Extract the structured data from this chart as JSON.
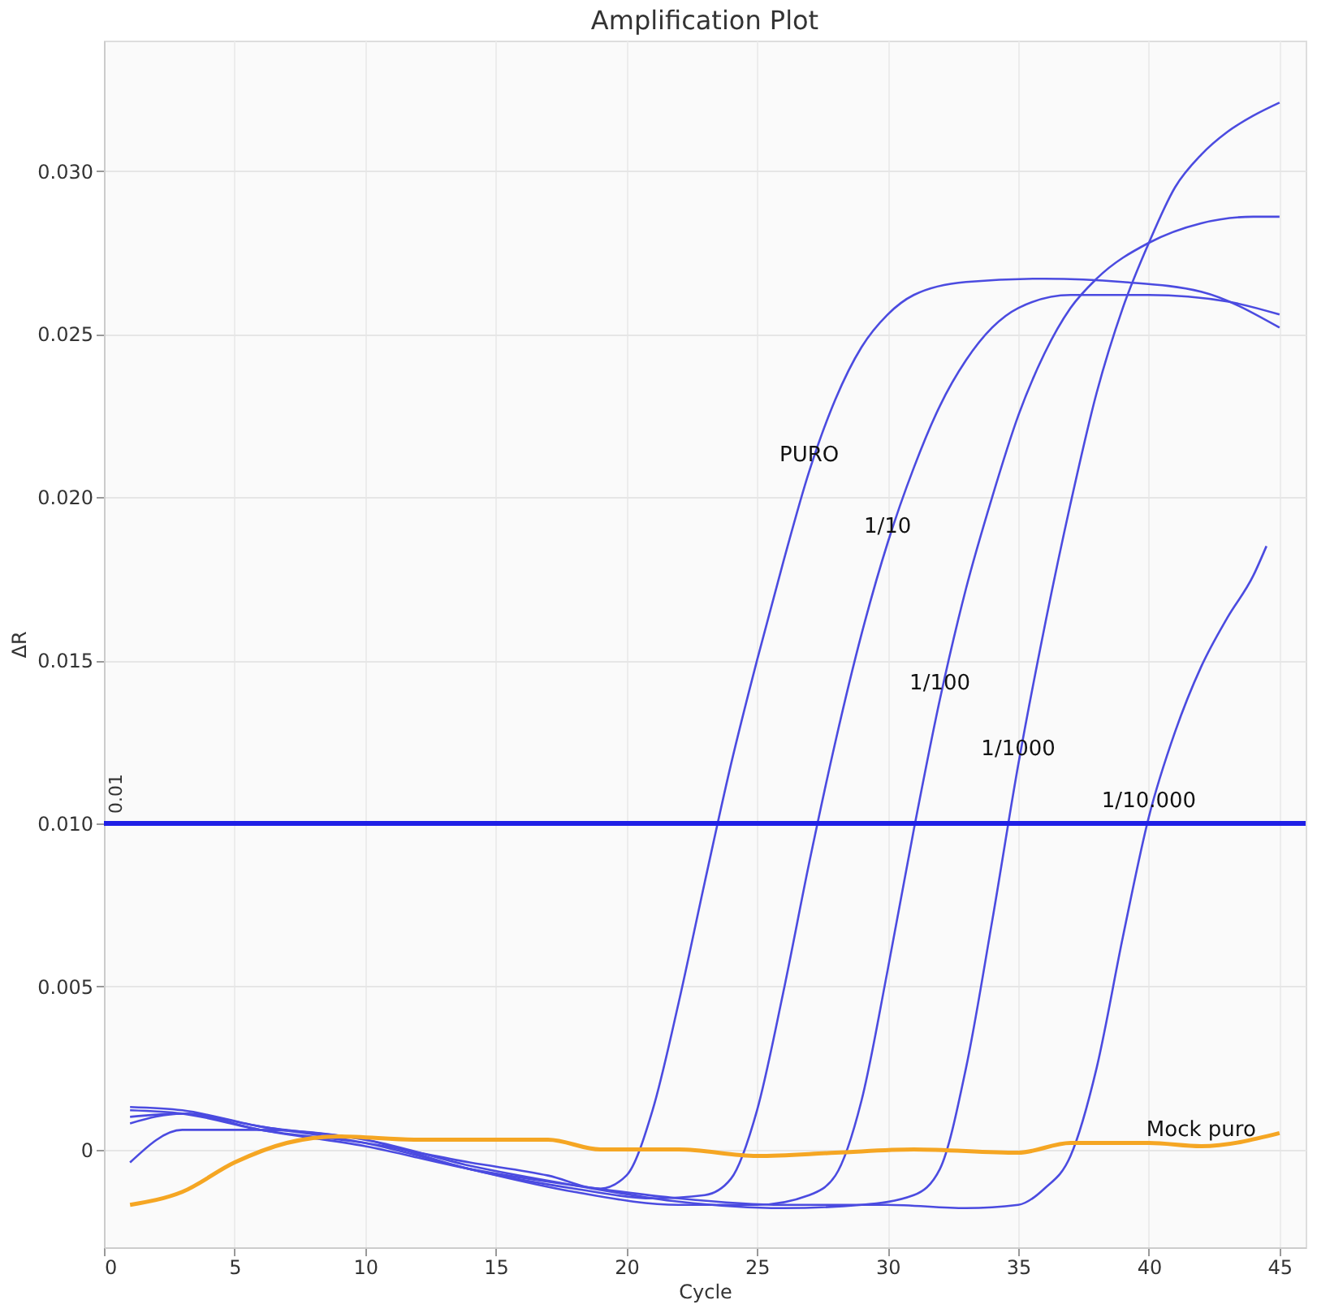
{
  "chart_data": {
    "type": "line",
    "title": "Amplification Plot",
    "xlabel": "Cycle",
    "ylabel": "ΔR",
    "xlim": [
      0,
      46
    ],
    "xticks": [
      0,
      5,
      10,
      15,
      20,
      25,
      30,
      35,
      40,
      45
    ],
    "ylim": [
      -0.003,
      0.034
    ],
    "yticks": [
      {
        "value": 0,
        "label": "0"
      },
      {
        "value": 0.005,
        "label": "0.005"
      },
      {
        "value": 0.01,
        "label": "0.010"
      },
      {
        "value": 0.015,
        "label": "0.015"
      },
      {
        "value": 0.02,
        "label": "0.020"
      },
      {
        "value": 0.025,
        "label": "0.025"
      },
      {
        "value": 0.03,
        "label": "0.030"
      }
    ],
    "grid": true,
    "marker": "none",
    "line_style": "solid",
    "series": [
      {
        "color": "#4b4be0",
        "x": [
          1,
          3,
          6,
          10,
          14,
          17,
          19,
          20,
          21,
          22,
          23,
          24,
          25,
          26,
          27,
          28,
          29,
          30,
          31,
          33,
          36,
          39,
          42,
          45
        ],
        "values": [
          0.0012,
          0.0011,
          0.0006,
          0.0002,
          -0.0004,
          -0.0008,
          -0.0012,
          -0.0008,
          0.0012,
          0.0045,
          0.0082,
          0.0118,
          0.015,
          0.018,
          0.0208,
          0.023,
          0.0246,
          0.0256,
          0.0262,
          0.0266,
          0.0267,
          0.0266,
          0.0263,
          0.0252
        ]
      },
      {
        "color": "#4b4be0",
        "x": [
          1,
          3,
          6,
          10,
          14,
          18,
          21,
          23,
          24,
          25,
          26,
          27,
          28,
          29,
          30,
          31,
          32,
          33,
          34,
          35,
          37,
          40,
          43,
          45
        ],
        "values": [
          0.0013,
          0.0012,
          0.0007,
          0.0003,
          -0.0006,
          -0.0012,
          -0.0015,
          -0.0014,
          -0.0009,
          0.0012,
          0.0048,
          0.0088,
          0.0125,
          0.0158,
          0.0186,
          0.0209,
          0.0228,
          0.0242,
          0.0252,
          0.0258,
          0.0262,
          0.0262,
          0.026,
          0.0256
        ]
      },
      {
        "color": "#4b4be0",
        "x": [
          1,
          3,
          6,
          10,
          14,
          18,
          22,
          25,
          27,
          28,
          29,
          30,
          31,
          32,
          33,
          34,
          35,
          36,
          37,
          38,
          40,
          42,
          44,
          45
        ],
        "values": [
          0.0008,
          0.0011,
          0.0007,
          0.0002,
          -0.0006,
          -0.0013,
          -0.0017,
          -0.0017,
          -0.0014,
          -0.0008,
          0.0015,
          0.0055,
          0.0098,
          0.0138,
          0.0172,
          0.02,
          0.0225,
          0.0244,
          0.0258,
          0.0267,
          0.0278,
          0.0284,
          0.0286,
          0.0286
        ]
      },
      {
        "color": "#4b4be0",
        "x": [
          1,
          3,
          6,
          10,
          14,
          18,
          22,
          26,
          29,
          31,
          32,
          33,
          34,
          35,
          36,
          37,
          38,
          39,
          40,
          41,
          42,
          43,
          44,
          45
        ],
        "values": [
          -0.0004,
          0.0006,
          0.0006,
          0.0003,
          -0.0005,
          -0.0011,
          -0.0016,
          -0.0018,
          -0.0017,
          -0.0014,
          -0.0006,
          0.0025,
          0.007,
          0.0118,
          0.016,
          0.0198,
          0.0232,
          0.0258,
          0.0278,
          0.0295,
          0.0305,
          0.0312,
          0.0317,
          0.0321
        ]
      },
      {
        "color": "#4b4be0",
        "x": [
          1,
          3,
          6,
          10,
          14,
          18,
          22,
          26,
          30,
          33,
          35,
          36,
          37,
          38,
          39,
          40,
          41,
          42,
          43,
          44,
          44.5
        ],
        "values": [
          0.001,
          0.0011,
          0.0006,
          0.0001,
          -0.0006,
          -0.0011,
          -0.0015,
          -0.0017,
          -0.0017,
          -0.0018,
          -0.0017,
          -0.0012,
          -0.0002,
          0.0025,
          0.0065,
          0.0102,
          0.0128,
          0.0148,
          0.0163,
          0.0176,
          0.0185
        ]
      },
      {
        "color": "#f5a623",
        "x": [
          1,
          3,
          5,
          7,
          9,
          12,
          15,
          17,
          19,
          22,
          25,
          28,
          31,
          35,
          37,
          40,
          42,
          45
        ],
        "values": [
          -0.0017,
          -0.0013,
          -0.0004,
          0.0002,
          0.0004,
          0.0003,
          0.0003,
          0.0003,
          0.0,
          0.0,
          -0.0002,
          -0.0001,
          0.0,
          -0.0001,
          0.0002,
          0.0002,
          0.0001,
          0.0005
        ]
      }
    ],
    "ref_lines": [
      {
        "axis": "y",
        "value": 0.01,
        "label": "0.01",
        "color": "#1f1fe6"
      }
    ],
    "annotations": [
      {
        "text": "PURO",
        "x": 27,
        "y": 0.0208
      },
      {
        "text": "1/10",
        "x": 30,
        "y": 0.0186
      },
      {
        "text": "1/100",
        "x": 32,
        "y": 0.0138
      },
      {
        "text": "1/1000",
        "x": 35,
        "y": 0.0118
      },
      {
        "text": "1/10.000",
        "x": 40,
        "y": 0.0102
      },
      {
        "text": "Mock puro",
        "x": 42,
        "y": 0.0001
      }
    ]
  }
}
